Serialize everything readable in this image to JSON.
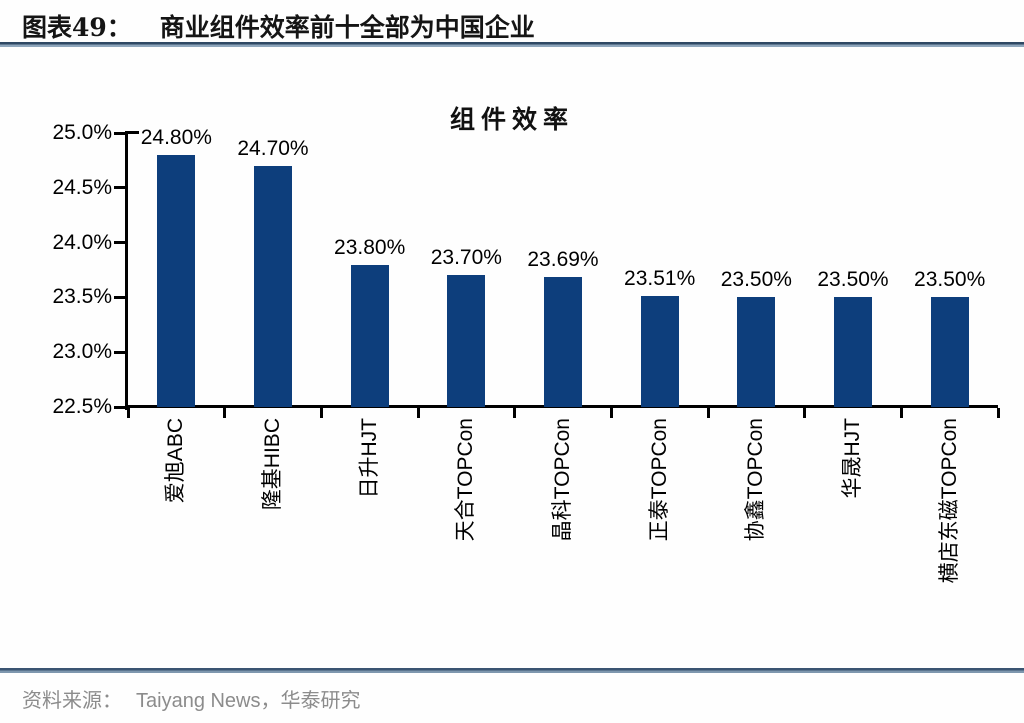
{
  "figure": {
    "label": "图表49：",
    "title": "商业组件效率前十全部为中国企业"
  },
  "chart_data": {
    "type": "bar",
    "title": "组件效率",
    "categories": [
      "爱旭ABC",
      "隆基HIBC",
      "日升HJT",
      "天合TOPCon",
      "晶科TOPCon",
      "正泰TOPCon",
      "协鑫TOPCon",
      "华晟HJT",
      "横店东磁TOPCon"
    ],
    "values": [
      24.8,
      24.7,
      23.8,
      23.7,
      23.69,
      23.51,
      23.5,
      23.5,
      23.5
    ],
    "value_labels": [
      "24.80%",
      "24.70%",
      "23.80%",
      "23.70%",
      "23.69%",
      "23.51%",
      "23.50%",
      "23.50%",
      "23.50%"
    ],
    "xlabel": "",
    "ylabel": "",
    "ylim": [
      22.5,
      25.0
    ],
    "ytick_labels": [
      "25.0%",
      "24.5%",
      "24.0%",
      "23.5%",
      "23.0%",
      "22.5%"
    ],
    "grid": false,
    "legend": "none",
    "bar_color": "#0d3e7c",
    "axis_color": "#000000"
  },
  "footer": {
    "source_label": "资料来源：",
    "source_text": "Taiyang News，华泰研究"
  }
}
